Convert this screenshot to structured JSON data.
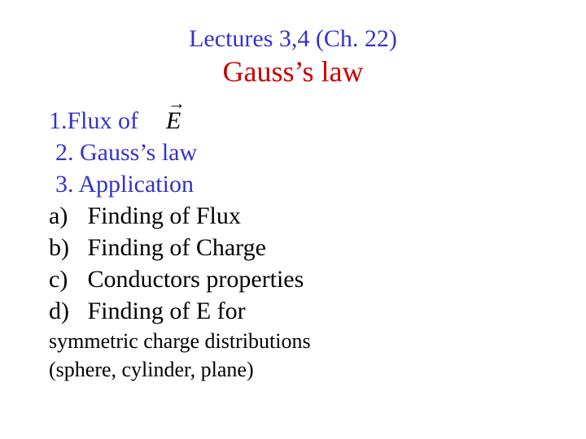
{
  "colors": {
    "blue": "#3333cc",
    "red": "#cc0000",
    "black": "#000000",
    "background": "#ffffff"
  },
  "fonts": {
    "family": "Times New Roman",
    "title_size_pt": 30,
    "topic_size_pt": 36,
    "body_size_pt": 30,
    "tail_size_pt": 26
  },
  "title": {
    "lecture": "Lectures 3,4 (Ch. 22)",
    "topic": "Gauss’s law"
  },
  "outline": {
    "item1_prefix": "1.Flux of",
    "vector_symbol": "E",
    "item2": "2. Gauss’s law",
    "item3": "3. Application",
    "subs": [
      {
        "letter": "a)",
        "text": "Finding of Flux"
      },
      {
        "letter": "b)",
        "text": "Finding of Charge"
      },
      {
        "letter": "c)",
        "text": "Conductors properties"
      },
      {
        "letter": "d)",
        "text": "Finding of E for"
      }
    ],
    "tail1": "symmetric charge distributions",
    "tail2": "(sphere, cylinder, plane)"
  }
}
